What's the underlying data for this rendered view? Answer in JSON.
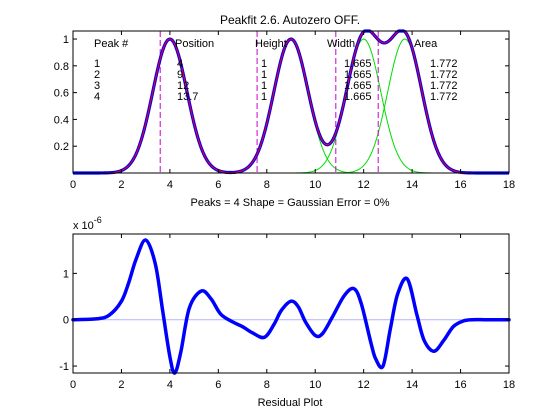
{
  "colors": {
    "data_line": "#0000ff",
    "fit_line": "#ff0000",
    "component": "#00dd00",
    "marker_line": "#cc00cc",
    "residual": "#0000ff",
    "axes": "#000000"
  },
  "chart_data": [
    {
      "type": "line",
      "title": "Peakfit 2.6. Autozero OFF.",
      "xlabel": "Peaks = 4     Shape = Gaussian     Error = 0%",
      "ylabel": "",
      "xlim": [
        0,
        18
      ],
      "ylim": [
        0,
        1.06
      ],
      "xticks": [
        0,
        2,
        4,
        6,
        8,
        10,
        12,
        14,
        16,
        18
      ],
      "xtick_labels": [
        "0",
        "2",
        "4",
        "6",
        "8",
        "10",
        "12",
        "14",
        "16",
        "18"
      ],
      "yticks": [
        0.2,
        0.4,
        0.6,
        0.8,
        1
      ],
      "ytick_labels": [
        "0.2",
        "0.4",
        "0.6",
        "0.8",
        "1"
      ],
      "grid": false,
      "peak_table": {
        "headers": [
          "Peak #",
          "Position",
          "Height",
          "Width",
          "Area"
        ],
        "rows": [
          [
            "1",
            "4",
            "1",
            "1.665",
            "1.772"
          ],
          [
            "2",
            "9",
            "1",
            "1.665",
            "1.772"
          ],
          [
            "3",
            "12",
            "1",
            "1.665",
            "1.772"
          ],
          [
            "4",
            "13.7",
            "1",
            "1.665",
            "1.772"
          ]
        ]
      },
      "peaks": [
        {
          "position": 4,
          "height": 1,
          "width": 1.665,
          "area": 1.772
        },
        {
          "position": 9,
          "height": 1,
          "width": 1.665,
          "area": 1.772
        },
        {
          "position": 12,
          "height": 1,
          "width": 1.665,
          "area": 1.772
        },
        {
          "position": 13.7,
          "height": 1,
          "width": 1.665,
          "area": 1.772
        }
      ],
      "marker_lines_x": [
        3.6,
        7.6,
        10.85,
        12.6
      ],
      "x_range": [
        0,
        18
      ]
    },
    {
      "type": "line",
      "title": "",
      "xlabel": "Residual Plot",
      "ylabel": "",
      "scale_label": "x 10",
      "scale_exponent": "-6",
      "xlim": [
        0,
        18
      ],
      "ylim": [
        -1.15,
        1.85
      ],
      "xticks": [
        0,
        2,
        4,
        6,
        8,
        10,
        12,
        14,
        16,
        18
      ],
      "xtick_labels": [
        "0",
        "2",
        "4",
        "6",
        "8",
        "10",
        "12",
        "14",
        "16",
        "18"
      ],
      "yticks": [
        -1,
        0,
        1
      ],
      "ytick_labels": [
        "-1",
        "0",
        "1"
      ],
      "grid": false,
      "x": [
        0,
        1,
        1.5,
        2,
        2.3,
        2.6,
        3.0,
        3.4,
        3.7,
        4.0,
        4.2,
        4.45,
        4.8,
        5.3,
        5.7,
        6.1,
        6.6,
        7.0,
        7.4,
        7.9,
        8.3,
        8.6,
        9.0,
        9.3,
        9.6,
        10.0,
        10.3,
        10.7,
        11.2,
        11.6,
        11.9,
        12.3,
        12.5,
        12.8,
        13.1,
        13.4,
        13.8,
        14.2,
        14.5,
        14.9,
        15.3,
        15.7,
        16.1,
        16.5,
        17.0,
        17.5,
        18.0
      ],
      "y": [
        0,
        0.02,
        0.1,
        0.4,
        0.8,
        1.3,
        1.72,
        1.2,
        0.2,
        -0.8,
        -1.15,
        -0.7,
        0.25,
        0.62,
        0.45,
        0.12,
        -0.05,
        -0.15,
        -0.28,
        -0.38,
        -0.1,
        0.2,
        0.4,
        0.28,
        -0.05,
        -0.34,
        -0.3,
        0.05,
        0.52,
        0.67,
        0.35,
        -0.5,
        -0.85,
        -1.0,
        -0.2,
        0.55,
        0.88,
        0.1,
        -0.45,
        -0.68,
        -0.45,
        -0.15,
        -0.03,
        0,
        0,
        0,
        0
      ]
    }
  ]
}
